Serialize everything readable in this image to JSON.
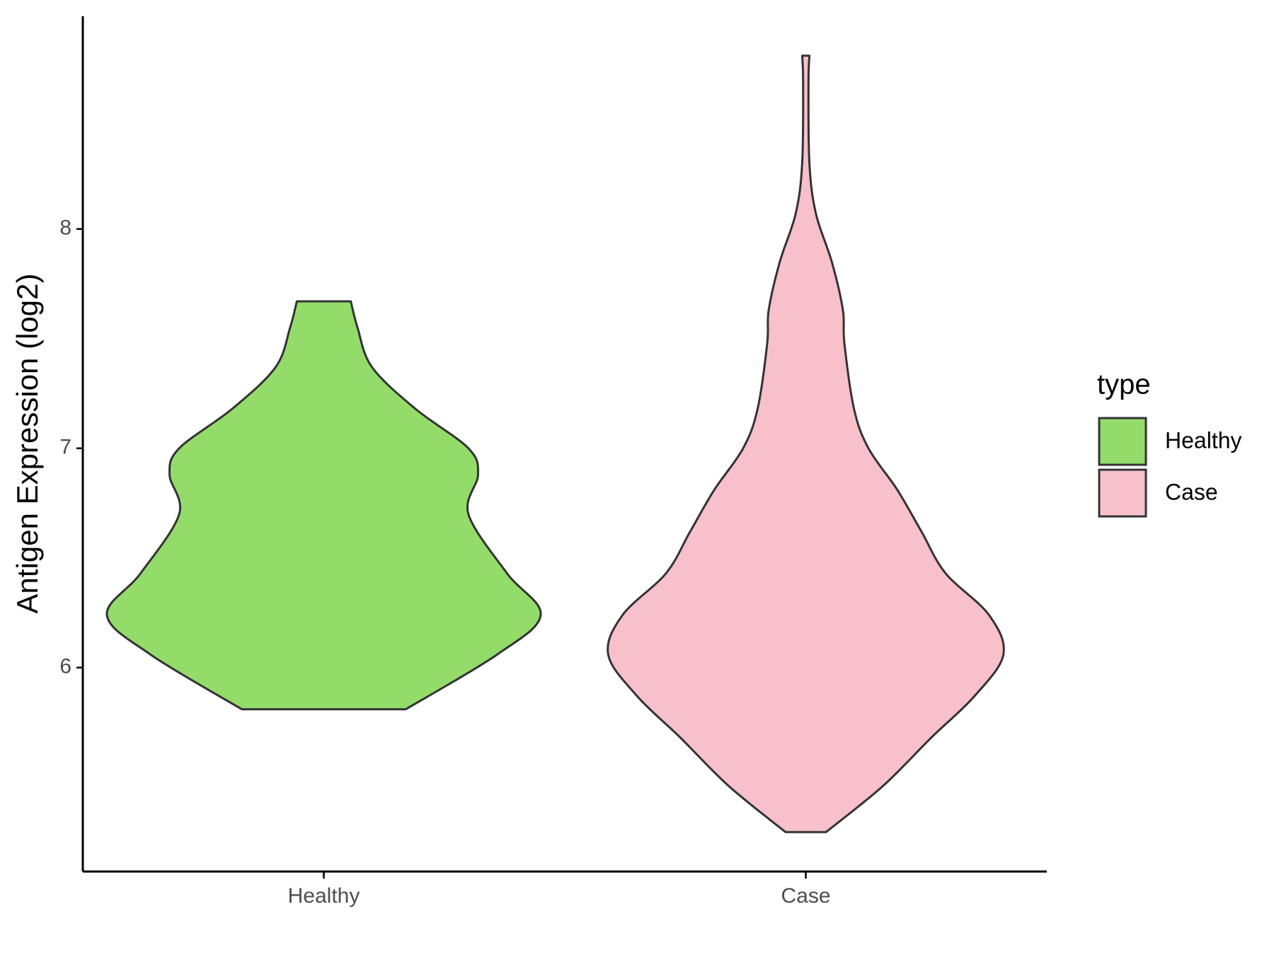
{
  "chart_data": {
    "type": "violin",
    "ylabel": "Antigen Expression (log2)",
    "legend_title": "type",
    "categories": [
      "Healthy",
      "Case"
    ],
    "series": [
      {
        "name": "Healthy",
        "color": "#93DC6A",
        "y": [
          5.81,
          6.06,
          6.24,
          6.43,
          6.7,
          6.88,
          7.0,
          7.18,
          7.37,
          7.55,
          7.67
        ],
        "width": [
          0.17,
          0.36,
          0.45,
          0.38,
          0.3,
          0.32,
          0.3,
          0.19,
          0.1,
          0.07,
          0.056
        ]
      },
      {
        "name": "Case",
        "color": "#F8C0CB",
        "y": [
          5.25,
          5.46,
          5.68,
          5.87,
          6.06,
          6.24,
          6.43,
          6.62,
          6.81,
          7.0,
          7.18,
          7.48,
          7.63,
          7.85,
          8.07,
          8.3,
          8.67,
          8.79
        ],
        "width": [
          0.042,
          0.16,
          0.26,
          0.35,
          0.41,
          0.38,
          0.29,
          0.24,
          0.19,
          0.13,
          0.1,
          0.08,
          0.077,
          0.054,
          0.021,
          0.0075,
          0.0056,
          0.0075
        ]
      }
    ],
    "ylim": [
      5.07,
      8.97
    ],
    "yticks": [
      6,
      7,
      8
    ]
  }
}
